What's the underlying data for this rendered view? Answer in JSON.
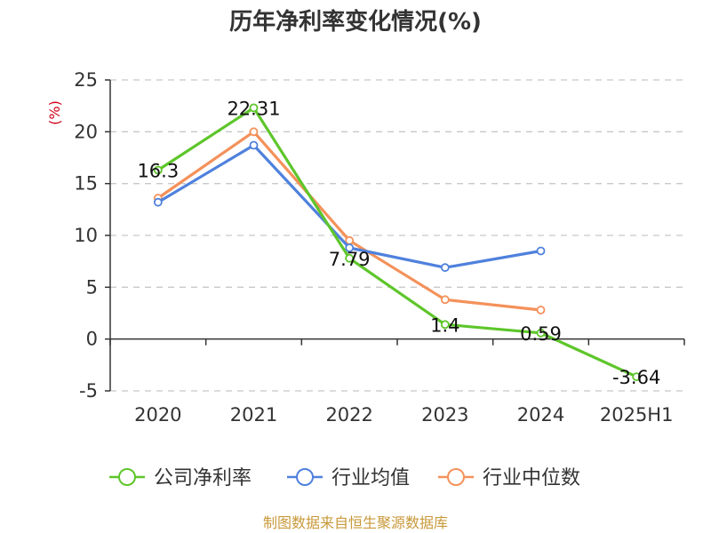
{
  "chart_data": {
    "type": "line",
    "title": "历年净利率变化情况(%)",
    "unit_label": "(%)",
    "categories": [
      "2020",
      "2021",
      "2022",
      "2023",
      "2024",
      "2025H1"
    ],
    "ylim": [
      -5,
      25
    ],
    "yticks": [
      -5,
      0,
      5,
      10,
      15,
      20,
      25
    ],
    "grid": true,
    "legend_position": "bottom",
    "series": [
      {
        "name": "公司净利率",
        "color": "#5ec62b",
        "values": [
          16.3,
          22.31,
          7.79,
          1.4,
          0.59,
          -3.64
        ],
        "labels": [
          "16.3",
          "22.31",
          "7.79",
          "1.4",
          "0.59",
          "-3.64"
        ]
      },
      {
        "name": "行业均值",
        "color": "#4f81dd",
        "values": [
          13.2,
          18.7,
          8.8,
          6.9,
          8.5,
          null
        ]
      },
      {
        "name": "行业中位数",
        "color": "#f4915a",
        "values": [
          13.6,
          20.0,
          9.5,
          3.8,
          2.8,
          null
        ]
      }
    ]
  },
  "source": "制图数据来自恒生聚源数据库"
}
